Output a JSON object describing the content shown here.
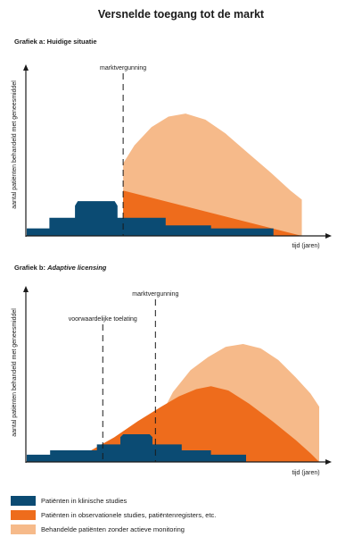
{
  "title": "Versnelde toegang tot de markt",
  "colors": {
    "clinical": "#0b4b73",
    "observational": "#ee6c1c",
    "treated": "#f6ba8a",
    "axis": "#1a1a1a"
  },
  "legend": [
    {
      "key": "clinical",
      "label": "Patiënten in klinische studies"
    },
    {
      "key": "observational",
      "label": "Patiënten in observationele studies, patiëntenregisters, etc."
    },
    {
      "key": "treated",
      "label": "Behandelde patiënten zonder actieve monitoring"
    }
  ],
  "chart_data": [
    {
      "type": "area",
      "title": "Grafiek a: Huidige situatie",
      "title_parts": [
        {
          "text": "Grafiek a: Huidige situatie",
          "italic": false
        }
      ],
      "xlabel": "tijd (jaren)",
      "ylabel": "aantal patiënten behandeld met geneesmiddel",
      "grid": false,
      "xlim": [
        0,
        100
      ],
      "ylim": [
        0,
        100
      ],
      "markers": [
        {
          "x": 34,
          "label": "marktvergunning"
        }
      ],
      "series": [
        {
          "name": "Behandelde patiënten zonder actieve monitoring",
          "key": "treated",
          "points": [
            [
              34,
              48
            ],
            [
              38,
              60
            ],
            [
              44,
              72
            ],
            [
              50,
              79
            ],
            [
              56,
              81
            ],
            [
              63,
              77
            ],
            [
              70,
              68
            ],
            [
              78,
              55
            ],
            [
              86,
              42
            ],
            [
              93,
              30
            ],
            [
              97,
              24
            ],
            [
              97,
              0
            ],
            [
              34,
              0
            ]
          ]
        },
        {
          "name": "Patiënten in observationele studies, patiëntenregisters, etc.",
          "key": "observational",
          "points": [
            [
              34,
              30
            ],
            [
              34,
              0
            ],
            [
              97,
              0
            ]
          ]
        },
        {
          "name": "Patiënten in klinische studies",
          "key": "clinical",
          "points": [
            [
              0,
              0
            ],
            [
              0,
              5
            ],
            [
              8,
              5
            ],
            [
              8,
              12
            ],
            [
              17,
              12
            ],
            [
              17,
              20
            ],
            [
              18,
              23
            ],
            [
              31,
              23
            ],
            [
              32,
              20
            ],
            [
              32,
              12
            ],
            [
              49,
              12
            ],
            [
              49,
              7
            ],
            [
              65,
              7
            ],
            [
              65,
              5
            ],
            [
              87,
              5
            ],
            [
              87,
              0
            ]
          ]
        }
      ]
    },
    {
      "type": "area",
      "title": "Grafiek b: Adaptive licensing",
      "title_parts": [
        {
          "text": "Grafiek b: ",
          "italic": false
        },
        {
          "text": "Adaptive licensing",
          "italic": true
        }
      ],
      "xlabel": "tijd (jaren)",
      "ylabel": "aantal patiënten behandeld met geneesmiddel",
      "grid": false,
      "xlim": [
        0,
        100
      ],
      "ylim": [
        0,
        100
      ],
      "markers": [
        {
          "x": 26,
          "label": "voorwaardelijke toelating"
        },
        {
          "x": 44,
          "label": "marktvergunning"
        }
      ],
      "series": [
        {
          "name": "Behandelde patiënten zonder actieve monitoring",
          "key": "treated",
          "points": [
            [
              38,
              8
            ],
            [
              44,
              25
            ],
            [
              50,
              48
            ],
            [
              56,
              63
            ],
            [
              62,
              72
            ],
            [
              68,
              79
            ],
            [
              74,
              81
            ],
            [
              80,
              78
            ],
            [
              86,
              70
            ],
            [
              92,
              58
            ],
            [
              97,
              47
            ],
            [
              100,
              38
            ],
            [
              100,
              0
            ],
            [
              38,
              0
            ]
          ]
        },
        {
          "name": "Patiënten in observationele studies, patiëntenregisters, etc.",
          "key": "observational",
          "points": [
            [
              15,
              2
            ],
            [
              22,
              8
            ],
            [
              30,
              17
            ],
            [
              38,
              28
            ],
            [
              46,
              38
            ],
            [
              52,
              45
            ],
            [
              58,
              50
            ],
            [
              63,
              52
            ],
            [
              69,
              49
            ],
            [
              76,
              40
            ],
            [
              84,
              28
            ],
            [
              92,
              15
            ],
            [
              97,
              6
            ],
            [
              100,
              0
            ],
            [
              15,
              0
            ]
          ]
        },
        {
          "name": "Patiënten in klinische studies",
          "key": "clinical",
          "points": [
            [
              0,
              0
            ],
            [
              0,
              5
            ],
            [
              8,
              5
            ],
            [
              8,
              8
            ],
            [
              24,
              8
            ],
            [
              24,
              12
            ],
            [
              32,
              12
            ],
            [
              32,
              17
            ],
            [
              33,
              19
            ],
            [
              42,
              19
            ],
            [
              43,
              17
            ],
            [
              43,
              12
            ],
            [
              53,
              12
            ],
            [
              53,
              8
            ],
            [
              63,
              8
            ],
            [
              63,
              5
            ],
            [
              75,
              5
            ],
            [
              75,
              0
            ]
          ]
        }
      ]
    }
  ]
}
